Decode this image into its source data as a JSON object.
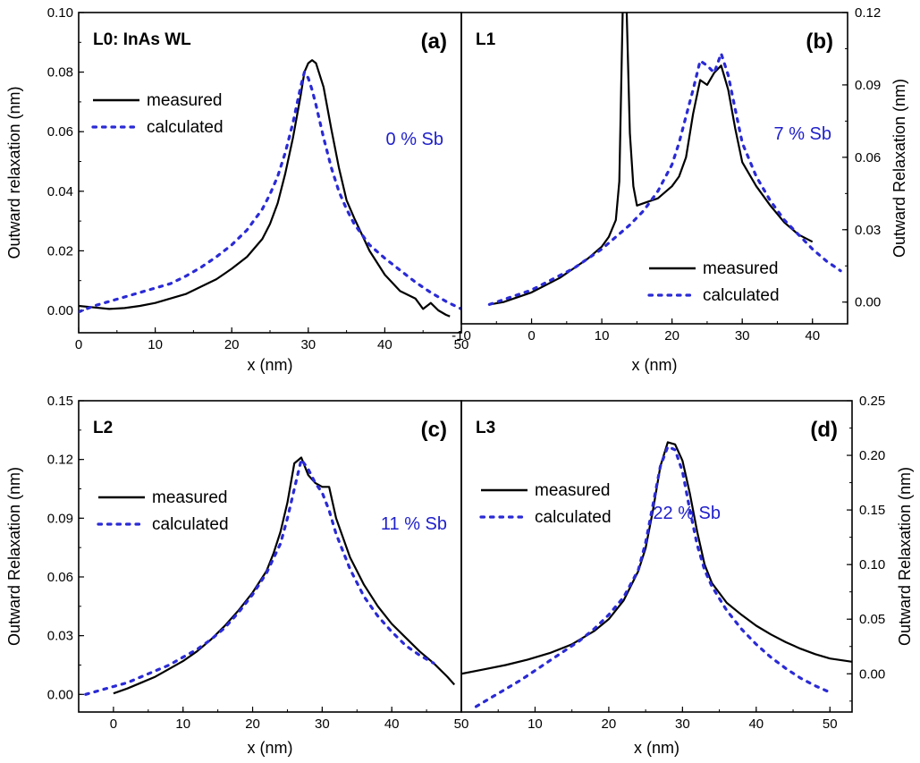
{
  "colors": {
    "measured": "#000000",
    "calculated": "#2a2ad6",
    "sb_text": "#2020cc"
  },
  "chart_data": [
    {
      "type": "line",
      "panel_id": "(a)",
      "layer_label": "L0: InAs WL",
      "sb_label": "0 % Sb",
      "xlabel": "x (nm)",
      "ylabel": "Outward relaxation (nm)",
      "xlim": [
        0,
        50
      ],
      "ylim": [
        -0.0075,
        0.1
      ],
      "xticks": [
        "0",
        "10",
        "20",
        "30",
        "40",
        "50"
      ],
      "yticks": [
        "0.00",
        "0.02",
        "0.04",
        "0.06",
        "0.08",
        "0.10"
      ],
      "y_axis_side": "left",
      "legend_position": "upper-left",
      "grid": false,
      "series": [
        {
          "name": "measured",
          "style": "solid",
          "x": [
            0,
            2,
            4,
            6,
            8,
            10,
            12,
            14,
            16,
            18,
            20,
            22,
            24,
            25,
            26,
            27,
            28,
            29,
            29.5,
            30,
            30.5,
            31,
            32,
            33,
            34,
            35,
            36,
            38,
            40,
            42,
            44,
            45,
            46,
            47,
            48,
            48.5
          ],
          "y": [
            0.0015,
            0.001,
            0.0005,
            0.0008,
            0.0015,
            0.0025,
            0.004,
            0.0055,
            0.008,
            0.0105,
            0.014,
            0.018,
            0.024,
            0.029,
            0.036,
            0.046,
            0.058,
            0.072,
            0.08,
            0.083,
            0.084,
            0.083,
            0.075,
            0.061,
            0.048,
            0.037,
            0.031,
            0.02,
            0.012,
            0.0065,
            0.004,
            0.0005,
            0.0025,
            0.0,
            -0.0015,
            -0.002
          ]
        },
        {
          "name": "calculated",
          "style": "dotted",
          "x": [
            0,
            2,
            4,
            6,
            8,
            10,
            12,
            14,
            16,
            18,
            20,
            22,
            24,
            25,
            26,
            27,
            28,
            29,
            29.5,
            30,
            30.5,
            31,
            32,
            33,
            34,
            35,
            36,
            38,
            40,
            42,
            44,
            46,
            48,
            50
          ],
          "y": [
            -0.0005,
            0.0015,
            0.003,
            0.0045,
            0.006,
            0.0075,
            0.009,
            0.0115,
            0.0145,
            0.018,
            0.022,
            0.027,
            0.034,
            0.039,
            0.045,
            0.053,
            0.063,
            0.075,
            0.08,
            0.078,
            0.074,
            0.069,
            0.058,
            0.048,
            0.04,
            0.034,
            0.029,
            0.022,
            0.0175,
            0.0135,
            0.0095,
            0.006,
            0.003,
            0.0005
          ]
        }
      ]
    },
    {
      "type": "line",
      "panel_id": "(b)",
      "layer_label": "L1",
      "sb_label": "7 % Sb",
      "xlabel": "x (nm)",
      "ylabel": "Outward Relaxation (nm)",
      "xlim": [
        -10,
        45
      ],
      "ylim": [
        -0.009,
        0.12
      ],
      "xticks": [
        "-10",
        "0",
        "10",
        "20",
        "30",
        "40"
      ],
      "yticks": [
        "0.00",
        "0.03",
        "0.06",
        "0.09",
        "0.12"
      ],
      "y_axis_side": "right",
      "legend_position": "lower-right",
      "grid": false,
      "series": [
        {
          "name": "measured",
          "style": "solid",
          "x": [
            -6,
            -4,
            -2,
            0,
            2,
            4,
            6,
            8,
            10,
            11,
            12,
            12.5,
            13,
            13.5,
            14,
            14.5,
            15,
            16,
            18,
            20,
            21,
            22,
            23,
            24,
            25,
            26,
            27,
            28,
            29,
            30,
            32,
            34,
            36,
            38,
            40
          ],
          "y": [
            -0.001,
            0.0,
            0.002,
            0.004,
            0.007,
            0.01,
            0.014,
            0.018,
            0.023,
            0.027,
            0.034,
            0.05,
            0.125,
            0.125,
            0.07,
            0.048,
            0.04,
            0.041,
            0.043,
            0.048,
            0.052,
            0.06,
            0.078,
            0.092,
            0.09,
            0.095,
            0.098,
            0.088,
            0.072,
            0.058,
            0.048,
            0.04,
            0.033,
            0.028,
            0.025
          ]
        },
        {
          "name": "calculated",
          "style": "dotted",
          "x": [
            -6,
            -4,
            -2,
            0,
            2,
            4,
            6,
            8,
            10,
            12,
            14,
            16,
            18,
            20,
            21,
            22,
            23,
            24,
            25,
            26,
            27,
            28,
            29,
            30,
            32,
            34,
            36,
            38,
            40,
            42,
            44
          ],
          "y": [
            -0.001,
            0.001,
            0.003,
            0.005,
            0.008,
            0.011,
            0.014,
            0.018,
            0.022,
            0.027,
            0.032,
            0.038,
            0.046,
            0.057,
            0.066,
            0.077,
            0.088,
            0.1,
            0.098,
            0.095,
            0.103,
            0.094,
            0.08,
            0.066,
            0.052,
            0.042,
            0.034,
            0.028,
            0.022,
            0.017,
            0.013
          ]
        }
      ]
    },
    {
      "type": "line",
      "panel_id": "(c)",
      "layer_label": "L2",
      "sb_label": "11 % Sb",
      "xlabel": "x (nm)",
      "ylabel": "Outward Relaxation (nm)",
      "xlim": [
        -5,
        50
      ],
      "ylim": [
        -0.009,
        0.15
      ],
      "xticks": [
        "0",
        "10",
        "20",
        "30",
        "40",
        "50"
      ],
      "yticks": [
        "0.00",
        "0.03",
        "0.06",
        "0.09",
        "0.12",
        "0.15"
      ],
      "y_axis_side": "left",
      "legend_position": "upper-left",
      "grid": false,
      "series": [
        {
          "name": "measured",
          "style": "solid",
          "x": [
            0,
            2,
            4,
            6,
            8,
            10,
            12,
            14,
            16,
            18,
            20,
            22,
            23,
            24,
            25,
            26,
            27,
            28,
            29,
            30,
            31,
            32,
            34,
            36,
            38,
            40,
            42,
            44,
            46,
            48,
            49
          ],
          "y": [
            0.0005,
            0.003,
            0.006,
            0.009,
            0.013,
            0.017,
            0.022,
            0.028,
            0.035,
            0.043,
            0.052,
            0.063,
            0.072,
            0.083,
            0.098,
            0.118,
            0.121,
            0.112,
            0.108,
            0.106,
            0.106,
            0.09,
            0.07,
            0.056,
            0.045,
            0.036,
            0.029,
            0.022,
            0.016,
            0.009,
            0.005
          ]
        },
        {
          "name": "calculated",
          "style": "dotted",
          "x": [
            -4,
            -2,
            0,
            2,
            4,
            6,
            8,
            10,
            12,
            14,
            16,
            18,
            20,
            22,
            24,
            25,
            26,
            27,
            28,
            29,
            30,
            31,
            32,
            34,
            36,
            38,
            40,
            42,
            44,
            46
          ],
          "y": [
            0.0,
            0.002,
            0.004,
            0.006,
            0.009,
            0.012,
            0.015,
            0.019,
            0.023,
            0.028,
            0.034,
            0.042,
            0.051,
            0.062,
            0.077,
            0.09,
            0.105,
            0.12,
            0.115,
            0.108,
            0.103,
            0.094,
            0.082,
            0.064,
            0.05,
            0.04,
            0.032,
            0.025,
            0.02,
            0.016
          ]
        }
      ]
    },
    {
      "type": "line",
      "panel_id": "(d)",
      "layer_label": "L3",
      "sb_label": "22 % Sb",
      "xlabel": "x (nm)",
      "ylabel": "Outward Relaxation (nm)",
      "xlim": [
        0,
        53
      ],
      "ylim": [
        -0.035,
        0.25
      ],
      "xticks": [
        "10",
        "20",
        "30",
        "40",
        "50"
      ],
      "yticks": [
        "0.00",
        "0.05",
        "0.10",
        "0.15",
        "0.20",
        "0.25"
      ],
      "y_axis_side": "right",
      "legend_position": "upper-left",
      "grid": false,
      "series": [
        {
          "name": "measured",
          "style": "solid",
          "x": [
            0,
            3,
            6,
            9,
            12,
            15,
            18,
            20,
            22,
            24,
            25,
            26,
            27,
            28,
            29,
            30,
            31,
            32,
            33,
            34,
            36,
            38,
            40,
            42,
            44,
            46,
            48,
            50,
            53
          ],
          "y": [
            0.0,
            0.004,
            0.008,
            0.013,
            0.019,
            0.027,
            0.039,
            0.05,
            0.067,
            0.094,
            0.115,
            0.15,
            0.19,
            0.212,
            0.21,
            0.195,
            0.165,
            0.13,
            0.1,
            0.083,
            0.065,
            0.054,
            0.044,
            0.036,
            0.029,
            0.023,
            0.018,
            0.014,
            0.011
          ]
        },
        {
          "name": "calculated",
          "style": "dotted",
          "x": [
            2,
            4,
            6,
            8,
            10,
            12,
            14,
            16,
            18,
            20,
            22,
            24,
            25,
            26,
            27,
            28,
            29,
            30,
            31,
            32,
            33,
            34,
            36,
            38,
            40,
            42,
            44,
            46,
            48,
            50
          ],
          "y": [
            -0.03,
            -0.022,
            -0.014,
            -0.006,
            0.003,
            0.012,
            0.021,
            0.03,
            0.041,
            0.054,
            0.07,
            0.095,
            0.12,
            0.155,
            0.19,
            0.208,
            0.205,
            0.185,
            0.15,
            0.118,
            0.095,
            0.08,
            0.058,
            0.041,
            0.027,
            0.015,
            0.005,
            -0.004,
            -0.011,
            -0.017
          ]
        }
      ]
    }
  ]
}
